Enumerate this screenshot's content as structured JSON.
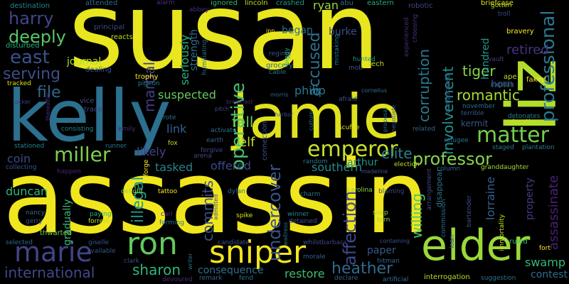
{
  "background": "#000000",
  "words": [
    {
      "text": "susan",
      "color": "#e8e61f"
    },
    {
      "text": "assassin",
      "color": "#f0e61d"
    },
    {
      "text": "kelly",
      "color": "#2c6f8e"
    },
    {
      "text": "jamie",
      "color": "#dfe21c"
    },
    {
      "text": "liz",
      "color": "#b2dd2d"
    },
    {
      "text": "elder",
      "color": "#9bd83a"
    },
    {
      "text": "sniper",
      "color": "#f2e51d"
    },
    {
      "text": "ron",
      "color": "#63c85c"
    },
    {
      "text": "marie",
      "color": "#414487"
    },
    {
      "text": "emperor",
      "color": "#c7e02a"
    },
    {
      "text": "matter",
      "color": "#74ce4e"
    },
    {
      "text": "professional",
      "color": "#2a788e"
    },
    {
      "text": "miller",
      "color": "#7bd04f"
    },
    {
      "text": "harry",
      "color": "#3f4788"
    },
    {
      "text": "east",
      "color": "#3b518a"
    },
    {
      "text": "deeply",
      "color": "#58c667"
    },
    {
      "text": "serving",
      "color": "#3d4d8a"
    },
    {
      "text": "file",
      "color": "#31688e"
    },
    {
      "text": "heather",
      "color": "#306a8e"
    },
    {
      "text": "international",
      "color": "#3e4989"
    },
    {
      "text": "sharon",
      "color": "#2fb47c"
    },
    {
      "text": "professor",
      "color": "#87d549"
    },
    {
      "text": "elite",
      "color": "#25838e"
    },
    {
      "text": "undercover",
      "color": "#3b528b"
    },
    {
      "text": "affection",
      "color": "#3e4a89"
    },
    {
      "text": "operative",
      "color": "#4ac16d"
    },
    {
      "text": "accused",
      "color": "#2d708e"
    },
    {
      "text": "illegal",
      "color": "#1f9a8a"
    },
    {
      "text": "commits",
      "color": "#3d4e8a"
    },
    {
      "text": "martial",
      "color": "#433e85"
    },
    {
      "text": "involvement",
      "color": "#21918c"
    },
    {
      "text": "corruption",
      "color": "#2a778e"
    },
    {
      "text": "romantic",
      "color": "#a8db34"
    },
    {
      "text": "tiger",
      "color": "#84d44b"
    },
    {
      "text": "willing",
      "color": "#54c568"
    },
    {
      "text": "assassinate",
      "color": "#482173"
    },
    {
      "text": "swamp",
      "color": "#35b779"
    },
    {
      "text": "contest",
      "color": "#2e6e8e"
    },
    {
      "text": "duncan",
      "color": "#31b57b"
    },
    {
      "text": "restore",
      "color": "#3fbc73"
    },
    {
      "text": "consequence",
      "color": "#2d718e"
    },
    {
      "text": "paper",
      "color": "#38588c"
    },
    {
      "text": "fell",
      "color": "#6ccd5a"
    },
    {
      "text": "retired",
      "color": "#46337f"
    },
    {
      "text": "philip",
      "color": "#2a768e"
    },
    {
      "text": "southern",
      "color": "#238a8d"
    },
    {
      "text": "arthur",
      "color": "#20938c"
    },
    {
      "text": "tasked",
      "color": "#26828e"
    },
    {
      "text": "offered",
      "color": "#3e4a89"
    },
    {
      "text": "suspected",
      "color": "#66cb5d"
    },
    {
      "text": "link",
      "color": "#35608d"
    },
    {
      "text": "likely",
      "color": "#414487"
    },
    {
      "text": "coin",
      "color": "#3e4989"
    },
    {
      "text": "elf",
      "color": "#c0df25"
    },
    {
      "text": "began",
      "color": "#2e6f8e"
    },
    {
      "text": "burke",
      "color": "#3d4d8a"
    },
    {
      "text": "journal",
      "color": "#b5de2b"
    },
    {
      "text": "seriously",
      "color": "#2ab07f"
    },
    {
      "text": "strength",
      "color": "#2f6c8e"
    },
    {
      "text": "lorraine",
      "color": "#355f8d"
    },
    {
      "text": "property",
      "color": "#443983"
    },
    {
      "text": "hundred",
      "color": "#1f968b"
    },
    {
      "text": "horn",
      "color": "#3e4c8a"
    },
    {
      "text": "kermit",
      "color": "#3b528b"
    },
    {
      "text": "gradually",
      "color": "#38b977"
    },
    {
      "text": "ryan",
      "color": "#9dd93b"
    },
    {
      "text": "destination",
      "color": "#24878e"
    },
    {
      "text": "attended",
      "color": "#31688e"
    },
    {
      "text": "lincoln",
      "color": "#bddf26"
    },
    {
      "text": "crashed",
      "color": "#1f9f88"
    },
    {
      "text": "abu",
      "color": "#2f6b8e"
    },
    {
      "text": "eastern",
      "color": "#25ac82"
    },
    {
      "text": "robotic",
      "color": "#3f4889"
    },
    {
      "text": "briefcase",
      "color": "#dde318"
    },
    {
      "text": "alarm",
      "color": "#46307e"
    },
    {
      "text": "abbey",
      "color": "#472d7b"
    },
    {
      "text": "ignored",
      "color": "#35b779"
    },
    {
      "text": "principal",
      "color": "#3e4989"
    },
    {
      "text": "reacts",
      "color": "#bddf26"
    },
    {
      "text": "disturbed",
      "color": "#29af7f"
    },
    {
      "text": "dealing",
      "color": "#39568c"
    },
    {
      "text": "trophy",
      "color": "#fde725"
    },
    {
      "text": "pigeon",
      "color": "#26828e"
    },
    {
      "text": "tracked",
      "color": "#dde318"
    },
    {
      "text": "vice",
      "color": "#3e4c8a"
    },
    {
      "text": "trace",
      "color": "#3f4788"
    },
    {
      "text": "hunted",
      "color": "#21918c"
    },
    {
      "text": "mob",
      "color": "#3b528b"
    },
    {
      "text": "tech",
      "color": "#c2df23"
    },
    {
      "text": "grocery",
      "color": "#2e6e8e"
    },
    {
      "text": "cable",
      "color": "#2c718e"
    },
    {
      "text": "regime",
      "color": "#3a548c"
    },
    {
      "text": "experienced",
      "color": "#472c7a"
    },
    {
      "text": "choosing",
      "color": "#46337f"
    },
    {
      "text": "troll",
      "color": "#3f4788"
    },
    {
      "text": "bravery",
      "color": "#fde725"
    },
    {
      "text": "gotten",
      "color": "#bddf26"
    },
    {
      "text": "vault",
      "color": "#423f85"
    },
    {
      "text": "explain",
      "color": "#2c728e"
    },
    {
      "text": "ape",
      "color": "#bddf26"
    },
    {
      "text": "faked",
      "color": "#fde725"
    },
    {
      "text": "complicated",
      "color": "#3a548c"
    },
    {
      "text": "november",
      "color": "#2d708e"
    },
    {
      "text": "terrible",
      "color": "#39568c"
    },
    {
      "text": "detonates",
      "color": "#287d8e"
    },
    {
      "text": "education",
      "color": "#c8e020"
    },
    {
      "text": "emily",
      "color": "#472a7a"
    },
    {
      "text": "wrote",
      "color": "#2f6c8e"
    },
    {
      "text": "consisting",
      "color": "#24868e"
    },
    {
      "text": "stationed",
      "color": "#26828e"
    },
    {
      "text": "collecting",
      "color": "#39558c"
    },
    {
      "text": "happen",
      "color": "#482475"
    },
    {
      "text": "runner",
      "color": "#2a788e"
    },
    {
      "text": "fox",
      "color": "#bddf26"
    },
    {
      "text": "forgive",
      "color": "#3e4989"
    },
    {
      "text": "arena",
      "color": "#3e4c8a"
    },
    {
      "text": "earth",
      "color": "#35608d"
    },
    {
      "text": "activate",
      "color": "#2d718e"
    },
    {
      "text": "connection",
      "color": "#3b528b"
    },
    {
      "text": "random",
      "color": "#2c728e"
    },
    {
      "text": "election",
      "color": "#c2df23"
    },
    {
      "text": "related",
      "color": "#32658e"
    },
    {
      "text": "refugee",
      "color": "#2c718e"
    },
    {
      "text": "staged",
      "color": "#2a788e"
    },
    {
      "text": "plantation",
      "color": "#287c8e"
    },
    {
      "text": "column",
      "color": "#32648e"
    },
    {
      "text": "granddaughter",
      "color": "#a2da37"
    },
    {
      "text": "tattoo",
      "color": "#fde725"
    },
    {
      "text": "delight",
      "color": "#8fd744"
    },
    {
      "text": "dylan",
      "color": "#2c718e"
    },
    {
      "text": "carl",
      "color": "#482878"
    },
    {
      "text": "forming",
      "color": "#2c728e"
    },
    {
      "text": "paying",
      "color": "#29af7f"
    },
    {
      "text": "forrest",
      "color": "#c2df23"
    },
    {
      "text": "gerry",
      "color": "#39558c"
    },
    {
      "text": "nancy",
      "color": "#31688e"
    },
    {
      "text": "thwarted",
      "color": "#7ad151"
    },
    {
      "text": "spike",
      "color": "#dde318"
    },
    {
      "text": "winner",
      "color": "#24868e"
    },
    {
      "text": "charm",
      "color": "#2c728e"
    },
    {
      "text": "carolina",
      "color": "#8fd744"
    },
    {
      "text": "snap",
      "color": "#a2da37"
    },
    {
      "text": "torn",
      "color": "#95d840"
    },
    {
      "text": "blaming",
      "color": "#3e4989"
    },
    {
      "text": "detained",
      "color": "#3a548c"
    },
    {
      "text": "whilst",
      "color": "#3e4c8a"
    },
    {
      "text": "barbara",
      "color": "#433e85"
    },
    {
      "text": "hitman",
      "color": "#31688e"
    },
    {
      "text": "candidate",
      "color": "#3b528b"
    },
    {
      "text": "morale",
      "color": "#32658e"
    },
    {
      "text": "declare",
      "color": "#32658e"
    },
    {
      "text": "artificial",
      "color": "#2e6e8e"
    },
    {
      "text": "fend",
      "color": "#2c728e"
    },
    {
      "text": "remark",
      "color": "#32658e"
    },
    {
      "text": "devoured",
      "color": "#472a7a"
    },
    {
      "text": "clark",
      "color": "#3e4c8a"
    },
    {
      "text": "selected",
      "color": "#31688e"
    },
    {
      "text": "giselle",
      "color": "#3a548c"
    },
    {
      "text": "available",
      "color": "#3a548c"
    },
    {
      "text": "interrogation",
      "color": "#b5de2b"
    },
    {
      "text": "suggestion",
      "color": "#2a788e"
    },
    {
      "text": "ruled",
      "color": "#3fbc73"
    },
    {
      "text": "fort",
      "color": "#fde725"
    },
    {
      "text": "loan",
      "color": "#3e4c8a"
    },
    {
      "text": "commission",
      "color": "#2c718e"
    },
    {
      "text": "immortality",
      "color": "#c8e020"
    },
    {
      "text": "bartender",
      "color": "#3b528b"
    },
    {
      "text": "arrangement",
      "color": "#3e4989"
    },
    {
      "text": "disappear",
      "color": "#2c728e"
    },
    {
      "text": "madeline",
      "color": "#3a548c"
    },
    {
      "text": "inn",
      "color": "#fde725"
    },
    {
      "text": "piggy",
      "color": "#2ab07f"
    },
    {
      "text": "mistaking",
      "color": "#2a788e"
    },
    {
      "text": "humiliating",
      "color": "#2f6c8e"
    },
    {
      "text": "breakfast",
      "color": "#472c7a"
    },
    {
      "text": "afraid",
      "color": "#3a548c"
    },
    {
      "text": "scuffle",
      "color": "#dde318"
    },
    {
      "text": "pitch",
      "color": "#3e4c8a"
    },
    {
      "text": "harbor",
      "color": "#3b528b"
    },
    {
      "text": "culture",
      "color": "#2c728e"
    },
    {
      "text": "proposal",
      "color": "#31688e"
    },
    {
      "text": "negotiate",
      "color": "#3a548c"
    },
    {
      "text": "cornelius",
      "color": "#2c718e"
    },
    {
      "text": "thereafter",
      "color": "#46337f"
    },
    {
      "text": "tucker",
      "color": "#433e85"
    },
    {
      "text": "forge",
      "color": "#fde725"
    },
    {
      "text": "admitted",
      "color": "#3e4c8a"
    },
    {
      "text": "waitress",
      "color": "#2c728e"
    },
    {
      "text": "writer",
      "color": "#2c718e"
    },
    {
      "text": "morris",
      "color": "#32658e"
    },
    {
      "text": "containing",
      "color": "#3a548c"
    }
  ]
}
